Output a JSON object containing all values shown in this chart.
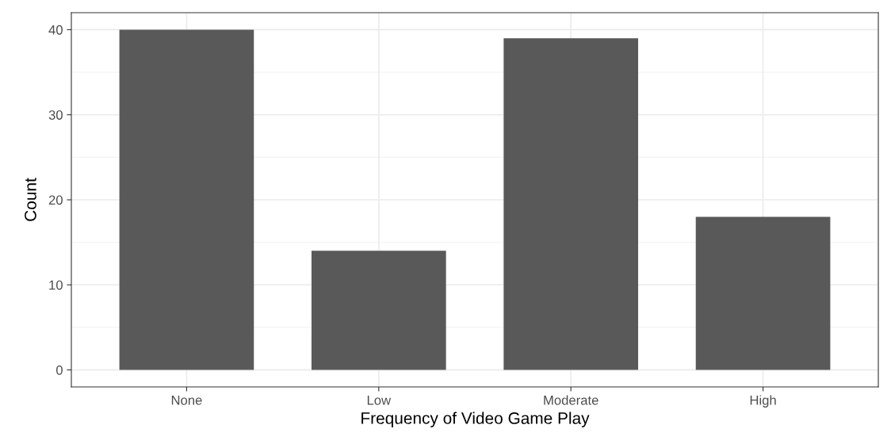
{
  "chart_data": {
    "type": "bar",
    "xlabel": "Frequency of Video Game Play",
    "ylabel": "Count",
    "categories": [
      "None",
      "Low",
      "Moderate",
      "High"
    ],
    "values": [
      40,
      14,
      39,
      18
    ],
    "color": "#595959",
    "ylim": [
      -2,
      42
    ],
    "yticks": [
      0,
      10,
      20,
      30,
      40
    ],
    "grid": true
  }
}
